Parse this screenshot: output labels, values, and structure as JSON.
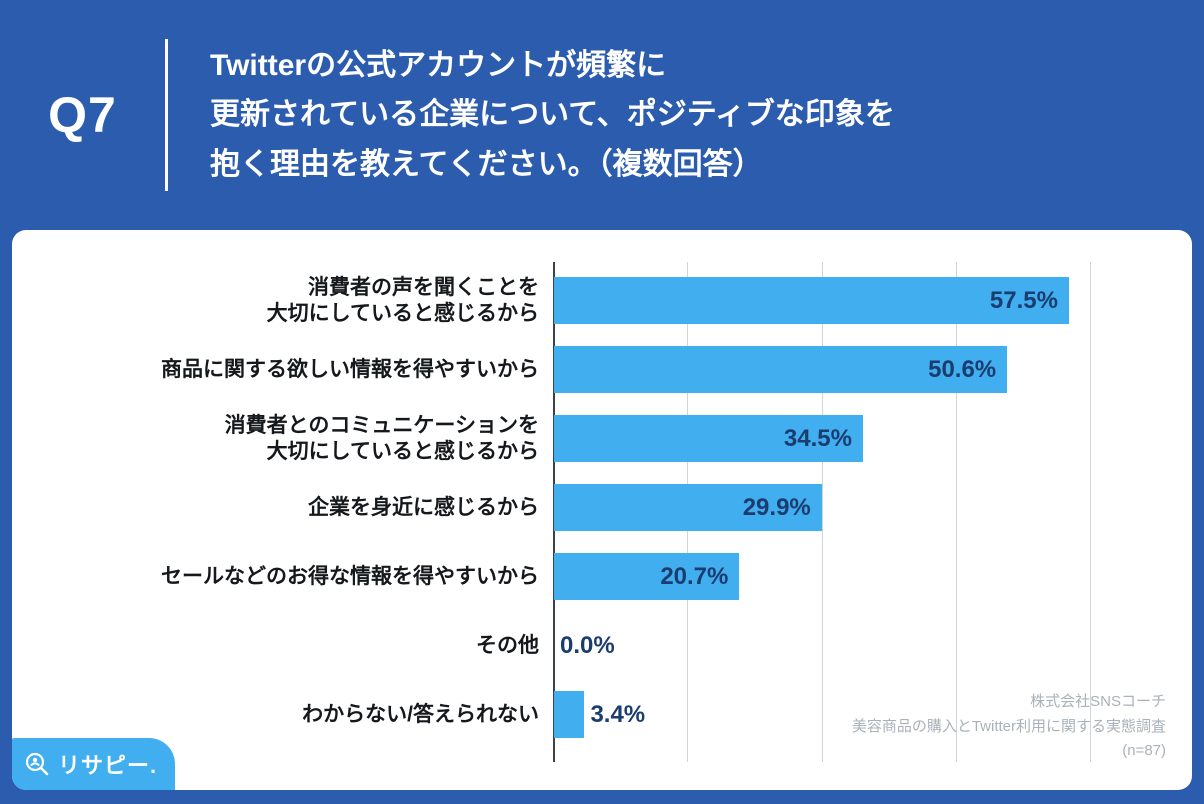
{
  "colors": {
    "background_blue": "#2B5CAD",
    "bar_blue": "#41AEF0",
    "value_navy": "#1A3C6E",
    "source_gray": "#A9B2BA"
  },
  "header": {
    "question_label": "Q7",
    "title_lines": [
      "Twitterの公式アカウントが頻繁に",
      "更新されている企業について、ポジティブな印象を",
      "抱く理由を教えてください。（複数回答）"
    ]
  },
  "chart_data": {
    "type": "bar",
    "orientation": "horizontal",
    "title": "Twitterの公式アカウントが頻繁に更新されている企業について、ポジティブな印象を抱く理由を教えてください。（複数回答）",
    "categories": [
      "消費者の声を聞くことを\n大切にしていると感じるから",
      "商品に関する欲しい情報を得やすいから",
      "消費者とのコミュニケーションを\n大切にしていると感じるから",
      "企業を身近に感じるから",
      "セールなどのお得な情報を得やすいから",
      "その他",
      "わからない/答えられない"
    ],
    "values": [
      57.5,
      50.6,
      34.5,
      29.9,
      20.7,
      0.0,
      3.4
    ],
    "value_labels": [
      "57.5%",
      "50.6%",
      "34.5%",
      "29.9%",
      "20.7%",
      "0.0%",
      "3.4%"
    ],
    "xlim": [
      0,
      68
    ],
    "gridlines": [
      15,
      30,
      45,
      60
    ],
    "grid": true,
    "legend": false,
    "xlabel": "",
    "ylabel": ""
  },
  "footer": {
    "source_lines": [
      "株式会社SNSコーチ",
      "美容商品の購入とTwitter利用に関する実態調査",
      "(n=87)"
    ],
    "logo_text": "リサピー."
  }
}
